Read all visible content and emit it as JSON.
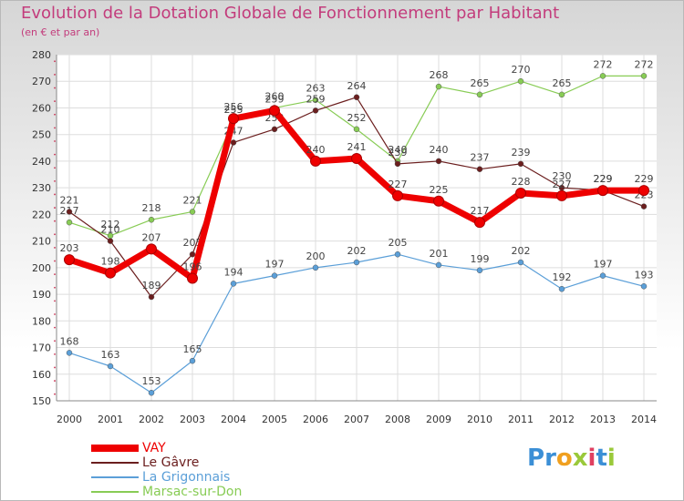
{
  "title": "Evolution de la Dotation Globale de Fonctionnement par Habitant",
  "subtitle": "(en € et par an)",
  "logo": {
    "text": "Proxiti",
    "letters": [
      "P",
      "r",
      "o",
      "x",
      "i",
      "t",
      "i"
    ],
    "colors": [
      "#3b8fd6",
      "#3b8fd6",
      "#f0a020",
      "#9ac93a",
      "#e04060",
      "#3b8fd6",
      "#9ac93a"
    ]
  },
  "chart_data": {
    "type": "line",
    "title": "Evolution de la Dotation Globale de Fonctionnement par Habitant",
    "subtitle": "(en € et par an)",
    "xlabel": "",
    "ylabel": "",
    "ylim": [
      150,
      280
    ],
    "ytick_step": 10,
    "grid": true,
    "legend_position": "bottom-left",
    "categories": [
      "2000",
      "2001",
      "2002",
      "2003",
      "2004",
      "2005",
      "2006",
      "2007",
      "2008",
      "2009",
      "2010",
      "2011",
      "2012",
      "2013",
      "2014"
    ],
    "series": [
      {
        "name": "Marsac-sur-Don",
        "color": "#88cc55",
        "values": [
          217,
          212,
          218,
          221,
          255,
          260,
          263,
          252,
          240,
          268,
          265,
          270,
          265,
          272,
          272
        ]
      },
      {
        "name": "La Grigonnais",
        "color": "#5b9fd8",
        "values": [
          168,
          163,
          153,
          165,
          194,
          197,
          200,
          202,
          205,
          201,
          199,
          202,
          192,
          197,
          193
        ]
      },
      {
        "name": "Le Gâvre",
        "color": "#6b1e1e",
        "values": [
          221,
          210,
          189,
          205,
          247,
          252,
          259,
          264,
          239,
          240,
          237,
          239,
          230,
          229,
          223
        ]
      },
      {
        "name": "VAY",
        "color": "#ee0000",
        "values": [
          203,
          198,
          207,
          196,
          256,
          259,
          240,
          241,
          227,
          225,
          217,
          228,
          227,
          229,
          229
        ]
      }
    ]
  }
}
